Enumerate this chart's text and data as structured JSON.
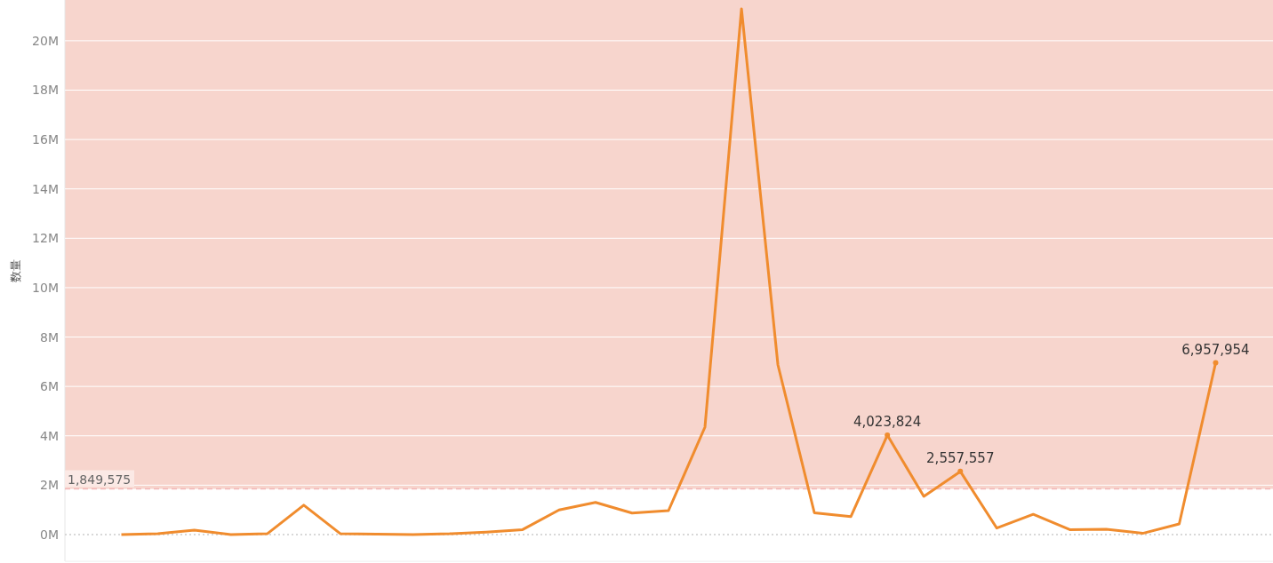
{
  "chart_data": {
    "type": "line",
    "ylabel": "数量",
    "categories": [
      null,
      null,
      null,
      null,
      null,
      null,
      null,
      null,
      null,
      null,
      null,
      null,
      null,
      null,
      null,
      null,
      null,
      null,
      null,
      null,
      null,
      null,
      null,
      null,
      null,
      null,
      null,
      null,
      null,
      null,
      null
    ],
    "series": [
      {
        "color": "#f08c2e",
        "values": [
          0,
          40000,
          180000,
          0,
          30000,
          1190000,
          40000,
          20000,
          0,
          30000,
          100000,
          200000,
          1000000,
          1300000,
          870000,
          970000,
          4350000,
          21290000,
          6870000,
          880000,
          730000,
          4023824,
          1550000,
          2557557,
          260000,
          820000,
          200000,
          220000,
          50000,
          430000,
          6957954
        ],
        "value_labels": [
          null,
          null,
          null,
          null,
          null,
          null,
          null,
          null,
          null,
          null,
          null,
          null,
          null,
          null,
          null,
          null,
          null,
          null,
          null,
          null,
          null,
          "4,023,824",
          null,
          "2,557,557",
          null,
          null,
          null,
          null,
          null,
          null,
          "6,957,954"
        ]
      }
    ],
    "ylim": [
      -1080000,
      21650000
    ],
    "yticks": [
      {
        "value": 0,
        "label": "0M"
      },
      {
        "value": 2000000,
        "label": "2M"
      },
      {
        "value": 4000000,
        "label": "4M"
      },
      {
        "value": 6000000,
        "label": "6M"
      },
      {
        "value": 8000000,
        "label": "8M"
      },
      {
        "value": 10000000,
        "label": "10M"
      },
      {
        "value": 12000000,
        "label": "12M"
      },
      {
        "value": 14000000,
        "label": "14M"
      },
      {
        "value": 16000000,
        "label": "16M"
      },
      {
        "value": 18000000,
        "label": "18M"
      },
      {
        "value": 20000000,
        "label": "20M"
      }
    ],
    "grid": "y",
    "marker": "none",
    "line_style": "solid",
    "tick_labels": "y",
    "bands": [
      {
        "axis": "y",
        "from": 1849575,
        "to": 21650000,
        "color": "#f7d5cd"
      }
    ],
    "ref_lines": [
      {
        "axis": "y",
        "value": 0,
        "line_style": "dotted",
        "color": "#cccccc"
      },
      {
        "axis": "y",
        "value": 1849575,
        "label": "1,849,575",
        "line_style": "dashed",
        "color": "#f2b8b8"
      }
    ]
  }
}
